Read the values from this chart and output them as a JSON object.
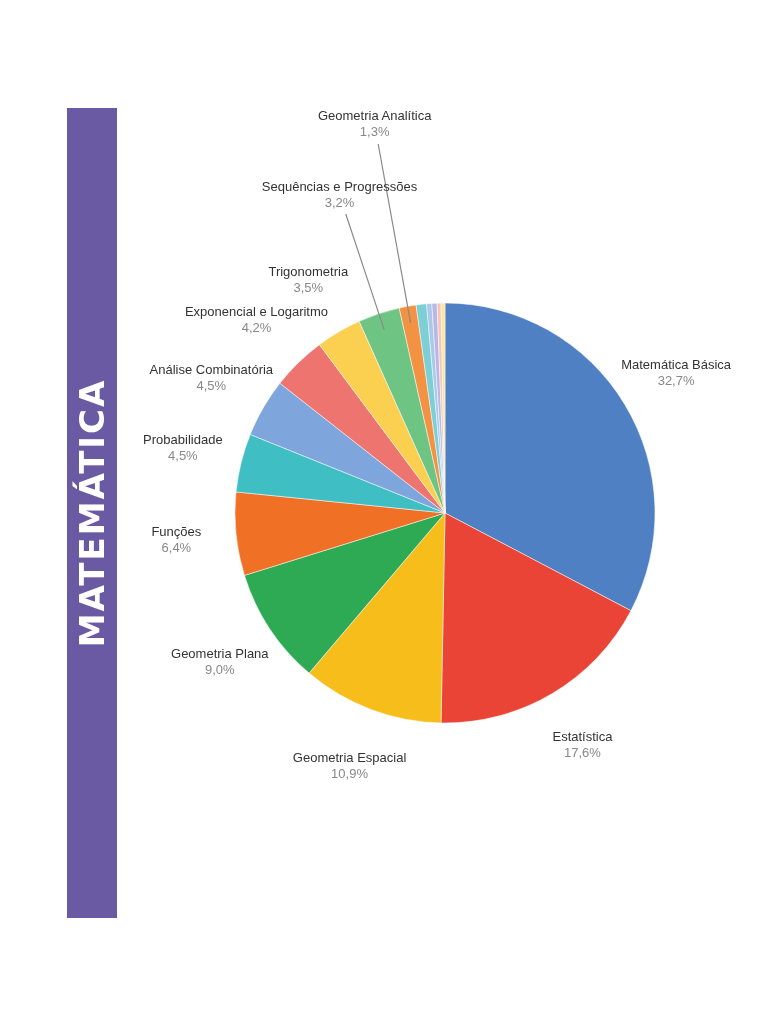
{
  "chart_data": {
    "type": "pie",
    "title": "MATEMÁTICA",
    "categories": [
      "Matemática Básica",
      "Estatística",
      "Geometria Espacial",
      "Geometria Plana",
      "Funções",
      "Probabilidade",
      "Análise Combinatória",
      "Exponencial e Logaritmo",
      "Trigonometria",
      "Sequências e Progressões",
      "Geometria Analítica",
      null,
      null,
      null,
      null,
      null
    ],
    "values": [
      32.7,
      17.6,
      10.9,
      9.0,
      6.4,
      4.5,
      4.5,
      4.2,
      3.5,
      3.2,
      1.3,
      0.8,
      0.4,
      0.4,
      0.3,
      0.3
    ],
    "value_labels": [
      "32,7%",
      "17,6%",
      "10,9%",
      "9,0%",
      "6,4%",
      "4,5%",
      "4,5%",
      "4,2%",
      "3,5%",
      "3,2%",
      "1,3%",
      null,
      null,
      null,
      null,
      null
    ],
    "colors": [
      "#5080c4",
      "#e94436",
      "#f7bd1a",
      "#2faa54",
      "#f07026",
      "#3fbfc4",
      "#7ea6dc",
      "#ee7470",
      "#fbd050",
      "#6ec483",
      "#f39242",
      "#7ccfd5",
      "#a9c8ea",
      "#b8b8e8",
      "#f5c6b8",
      "#fde5a0"
    ],
    "legend": false
  }
}
